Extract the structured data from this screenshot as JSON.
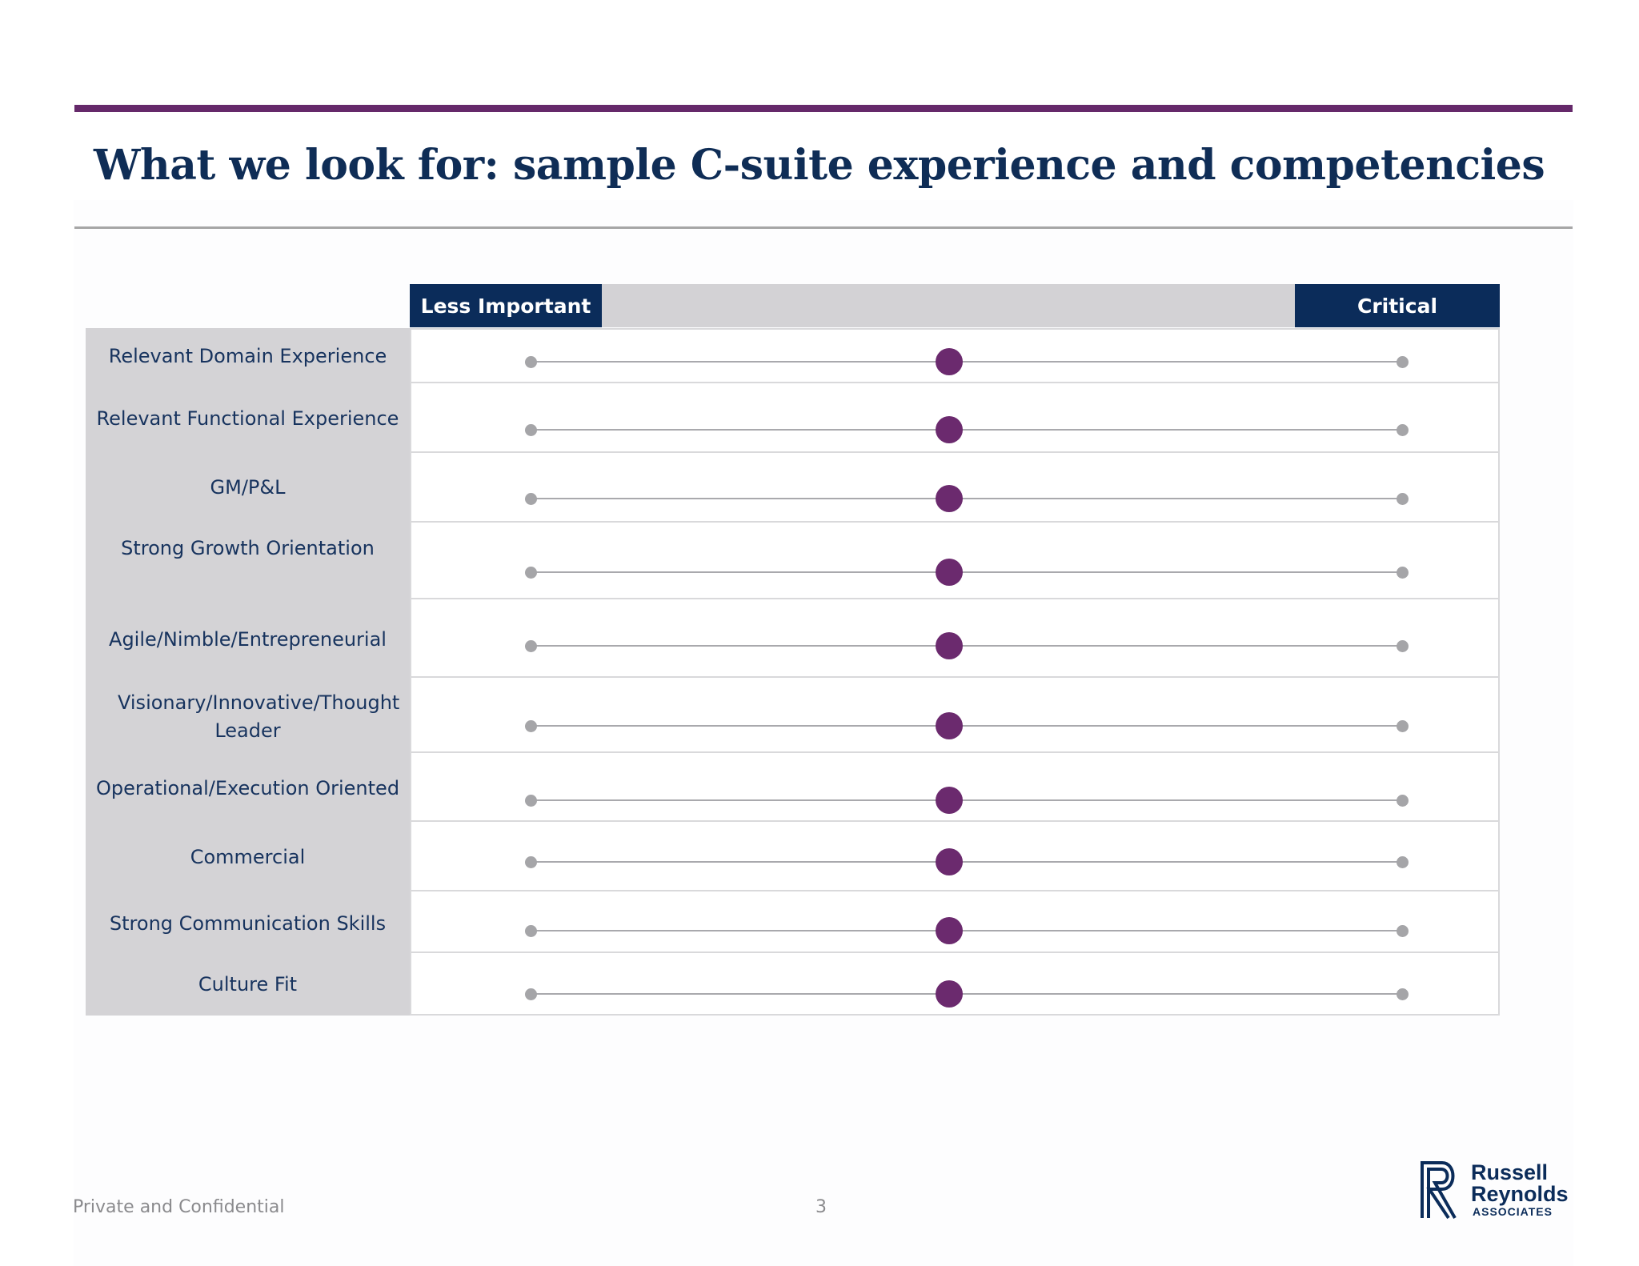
{
  "header": {
    "title": "What we look for: sample C-suite experience and competencies"
  },
  "scale": {
    "left_label": "Less Important",
    "right_label": "Critical",
    "min": 0,
    "max": 1
  },
  "competencies": [
    {
      "label": "Relevant Domain Experience",
      "importance": 0.48
    },
    {
      "label": "Relevant Functional Experience",
      "importance": 0.48
    },
    {
      "label": "GM/P&L",
      "importance": 0.48
    },
    {
      "label": "Strong Growth Orientation",
      "importance": 0.48
    },
    {
      "label": "Agile/Nimble/Entrepreneurial",
      "importance": 0.48
    },
    {
      "label": "Visionary/Innovative/Thought Leader",
      "importance": 0.48
    },
    {
      "label": "Operational/Execution Oriented",
      "importance": 0.48
    },
    {
      "label": "Commercial",
      "importance": 0.48
    },
    {
      "label": "Strong Communication Skills",
      "importance": 0.48
    },
    {
      "label": "Culture Fit",
      "importance": 0.48
    }
  ],
  "colors": {
    "accent": "#65296a",
    "navy": "#0b2c5a",
    "marker": "#6b2a6e"
  },
  "footer": {
    "confidential": "Private and Confidential",
    "page_number": "3"
  },
  "logo": {
    "line1": "Russell",
    "line2": "Reynolds",
    "line3": "ASSOCIATES"
  }
}
